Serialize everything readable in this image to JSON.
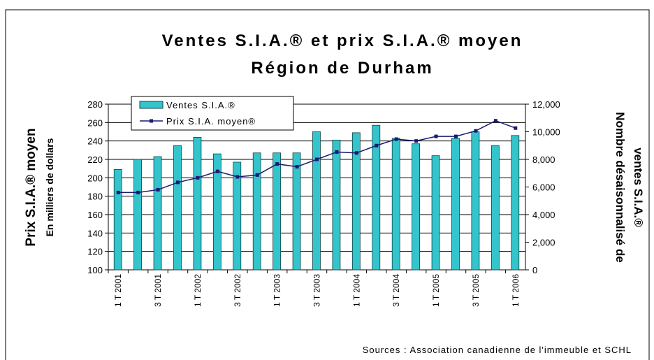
{
  "chart_data": {
    "type": "bar_line",
    "title": [
      "Ventes S.I.A.® et prix S.I.A.® moyen",
      "Région de Durham"
    ],
    "y_label": "Prix S.I.A.® moyen",
    "y_sublabel": "En milliers de dollars",
    "y2_label": [
      "Nombre désaisonnalisé de",
      "ventes S.I.A.®"
    ],
    "source": "Sources : Association canadienne de l'immeuble et SCHL",
    "categories": [
      "1 T 2001",
      null,
      "3 T 2001",
      null,
      "1 T 2002",
      null,
      "3 T 2002",
      null,
      "1 T 2003",
      null,
      "3 T 2003",
      null,
      "1 T 2004",
      null,
      "3 T 2004",
      null,
      "1 T 2005",
      null,
      "3 T 2005",
      null,
      "1 T 2006"
    ],
    "series": [
      {
        "name": "Ventes S.I.A.®",
        "color": "#33c4cc",
        "axis": "y2",
        "kind": "bar",
        "values": [
          7270,
          8000,
          8200,
          9000,
          9600,
          8400,
          7800,
          8470,
          8470,
          8470,
          10000,
          9400,
          9930,
          10470,
          9530,
          9130,
          8270,
          9530,
          10000,
          9000,
          9730
        ]
      },
      {
        "name": "Prix S.I.A. moyen®",
        "color": "#1a1a70",
        "kind": "line",
        "values": [
          184,
          184,
          187,
          195,
          200,
          207,
          201,
          203,
          215,
          212,
          220,
          228,
          227,
          235,
          242,
          240,
          245,
          245,
          251,
          262,
          254
        ]
      }
    ],
    "ylim": [
      100,
      280
    ],
    "yticks": [
      100,
      120,
      140,
      160,
      180,
      200,
      220,
      240,
      260,
      280
    ],
    "y2lim": [
      0,
      12000
    ],
    "y2ticks": [
      0,
      {
        "value": 2000,
        "label": "2,000"
      },
      {
        "value": 4000,
        "label": "4,000"
      },
      {
        "value": 6000,
        "label": "6,000"
      },
      {
        "value": 8000,
        "label": "8,000"
      },
      {
        "value": 10000,
        "label": "10,000"
      },
      {
        "value": 12000,
        "label": "12,000"
      }
    ],
    "grid": true
  }
}
